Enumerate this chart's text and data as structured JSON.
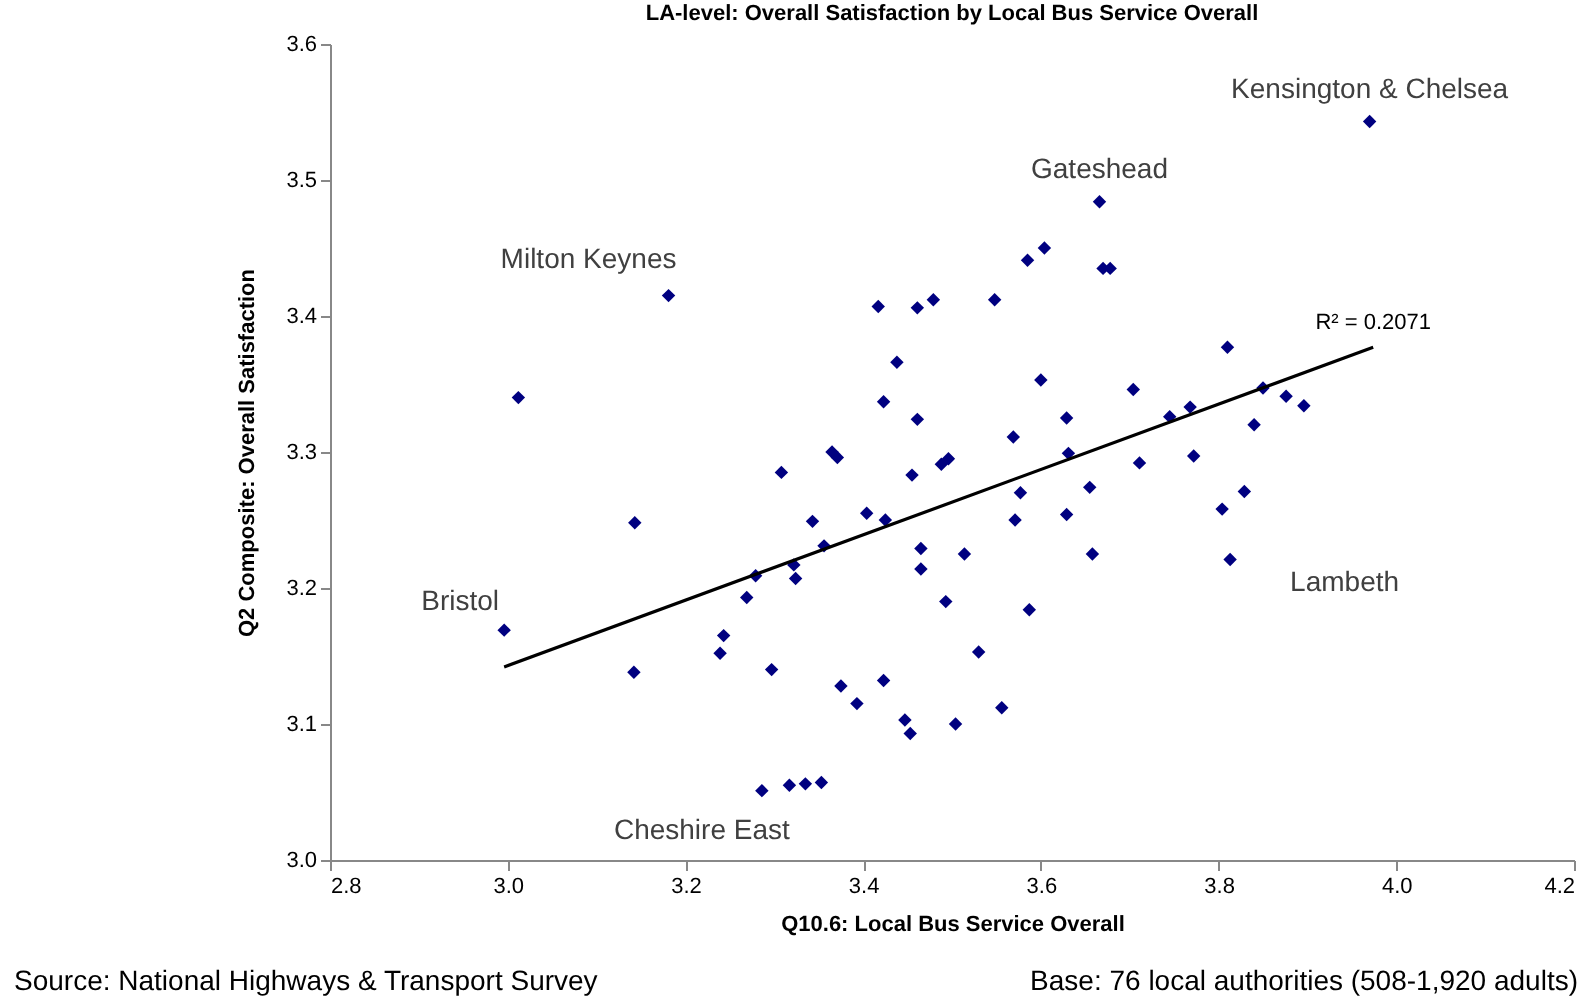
{
  "chart_data": {
    "type": "scatter",
    "title": "LA-level: Overall Satisfaction by Local Bus Service Overall",
    "xlabel": "Q10.6: Local Bus Service Overall",
    "ylabel": "Q2 Composite: Overall Satisfaction",
    "series": [
      {
        "color": "#000080",
        "marker": "diamond",
        "x": [
          3.97,
          3.666,
          3.604,
          3.585,
          3.67,
          3.678,
          3.181,
          3.417,
          3.461,
          3.479,
          3.548,
          3.438,
          3.423,
          3.6,
          3.012,
          3.461,
          3.569,
          3.629,
          3.704,
          3.81,
          3.85,
          3.876,
          3.896,
          3.745,
          3.768,
          3.84,
          3.631,
          3.772,
          3.711,
          3.577,
          3.571,
          3.655,
          3.629,
          3.829,
          3.804,
          3.658,
          3.813,
          3.587,
          2.996,
          3.143,
          3.142,
          3.243,
          3.239,
          3.269,
          3.279,
          3.297,
          3.308,
          3.322,
          3.324,
          3.343,
          3.356,
          3.365,
          3.371,
          3.375,
          3.393,
          3.404,
          3.425,
          3.423,
          3.455,
          3.447,
          3.453,
          3.465,
          3.465,
          3.488,
          3.496,
          3.493,
          3.504,
          3.514,
          3.53,
          3.556,
          3.286,
          3.317,
          3.335,
          3.353
        ],
        "values": [
          3.543,
          3.484,
          3.45,
          3.441,
          3.435,
          3.435,
          3.415,
          3.407,
          3.406,
          3.412,
          3.412,
          3.366,
          3.337,
          3.353,
          3.34,
          3.324,
          3.311,
          3.325,
          3.346,
          3.377,
          3.347,
          3.341,
          3.334,
          3.326,
          3.333,
          3.32,
          3.299,
          3.297,
          3.292,
          3.27,
          3.25,
          3.274,
          3.254,
          3.271,
          3.258,
          3.225,
          3.221,
          3.184,
          3.169,
          3.248,
          3.138,
          3.165,
          3.152,
          3.193,
          3.209,
          3.14,
          3.285,
          3.217,
          3.207,
          3.249,
          3.231,
          3.3,
          3.296,
          3.128,
          3.115,
          3.255,
          3.25,
          3.132,
          3.283,
          3.103,
          3.093,
          3.229,
          3.214,
          3.291,
          3.295,
          3.19,
          3.1,
          3.225,
          3.153,
          3.112,
          3.051,
          3.055,
          3.056,
          3.057
        ]
      },
      {
        "type": "line",
        "color": "#000000",
        "line_style": "solid",
        "x": [
          2.996,
          3.974
        ],
        "values": [
          3.142,
          3.377
        ]
      }
    ],
    "xlim": [
      2.8,
      4.2
    ],
    "xticks": [
      2.8,
      {
        "value": 3.0,
        "label": "3.0"
      },
      3.2,
      3.4,
      3.6,
      3.8,
      {
        "value": 4.0,
        "label": "4.0"
      },
      4.2
    ],
    "ylim": [
      3.0,
      3.6
    ],
    "yticks": [
      {
        "value": 3.0,
        "label": "3.0"
      },
      3.1,
      3.2,
      3.3,
      3.4,
      3.5,
      3.6
    ],
    "grid": false,
    "annotations": [
      {
        "text": "Kensington & Chelsea",
        "x": 3.97,
        "y": 3.543
      },
      {
        "text": "Gateshead",
        "x": 3.666,
        "y": 3.484
      },
      {
        "text": "Milton Keynes",
        "x": 3.181,
        "y": 3.415
      },
      {
        "text": "Bristol",
        "x": 2.996,
        "y": 3.169
      },
      {
        "text": "Cheshire East",
        "x": 3.286,
        "y": 3.051
      },
      {
        "text": "Lambeth",
        "x": 3.813,
        "y": 3.221
      },
      {
        "text": "R² = 0.2071",
        "x": 3.974,
        "y": 3.377
      },
      "Source: National Highways & Transport Survey",
      "Base: 76 local authorities (508-1,920 adults)"
    ]
  }
}
